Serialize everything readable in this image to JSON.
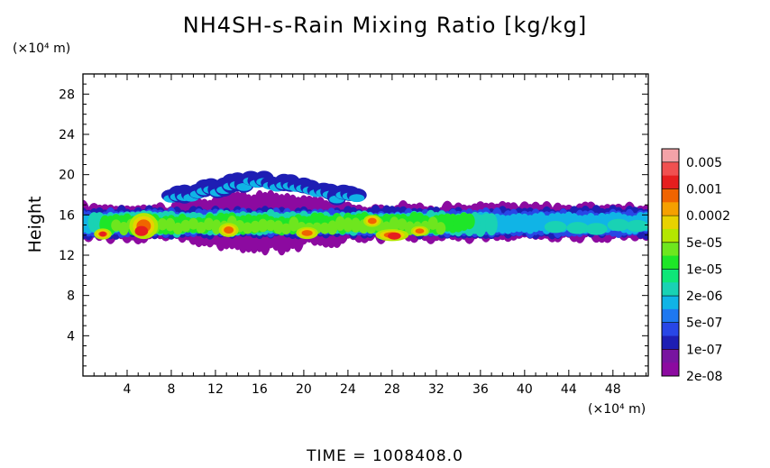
{
  "title": "NH4SH-s-Rain Mixing Ratio [kg/kg]",
  "time_label": "TIME  =  1008408.0",
  "chart_data": {
    "type": "heatmap",
    "title": "NH4SH-s-Rain Mixing Ratio [kg/kg]",
    "xlabel": "",
    "ylabel": "Height",
    "x_unit": "(×10⁴ m)",
    "y_unit": "(×10⁴ m)",
    "xlim": [
      0,
      51.2
    ],
    "ylim": [
      0,
      30
    ],
    "x_ticks": [
      4,
      8,
      12,
      16,
      20,
      24,
      28,
      32,
      36,
      40,
      44,
      48
    ],
    "y_ticks": [
      4,
      8,
      12,
      16,
      20,
      24,
      28
    ],
    "colorbar": {
      "labels": [
        "0.005",
        "0.001",
        "0.0002",
        "5e-05",
        "1e-05",
        "2e-06",
        "5e-07",
        "1e-07",
        "2e-08"
      ],
      "colors": [
        "#f4a3a8",
        "#f05050",
        "#e61e1e",
        "#f06400",
        "#f5a000",
        "#e8d200",
        "#b4e600",
        "#6ee61e",
        "#1ee628",
        "#0ee678",
        "#19d2b4",
        "#10b4e6",
        "#1e78f0",
        "#2846e6",
        "#1e1eb4",
        "#7814a0",
        "#8c0aa0"
      ]
    },
    "layer": {
      "base_height": 13.5,
      "top_height": 16.5,
      "max_height": 19.5,
      "x_extent": [
        0,
        51.2
      ]
    }
  }
}
